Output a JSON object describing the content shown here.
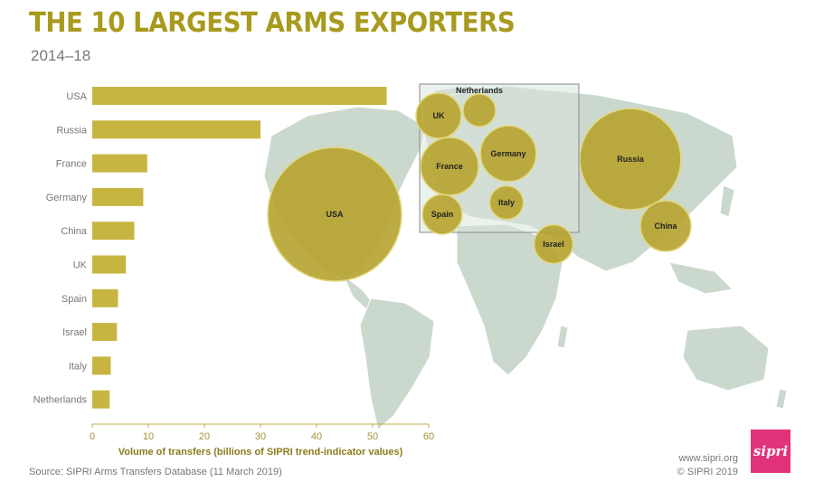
{
  "header": {
    "title": "THE 10 LARGEST ARMS EXPORTERS",
    "subtitle": "2014–18"
  },
  "colors": {
    "bar": "#c8b541",
    "bubble": "#b6a32f",
    "bubble_stroke": "#e2d77c",
    "land": "#cbd8ce",
    "axis": "#c0b14a",
    "label_text": "#8a7c1c",
    "logo": "#e0337a"
  },
  "chart_data": {
    "type": "bar",
    "orientation": "horizontal",
    "categories": [
      "USA",
      "Russia",
      "France",
      "Germany",
      "China",
      "UK",
      "Spain",
      "Israel",
      "Italy",
      "Netherlands"
    ],
    "values": [
      52.5,
      30,
      9.8,
      9.1,
      7.5,
      6,
      4.6,
      4.4,
      3.3,
      3.1
    ],
    "xlabel": "Volume of transfers (billions of SIPRI trend-indicator values)",
    "xlim": [
      0,
      60
    ],
    "xticks": [
      0,
      10,
      20,
      30,
      40,
      50,
      60
    ],
    "grid": false
  },
  "map": {
    "inset_label": "Netherlands",
    "bubbles": [
      {
        "label": "USA",
        "value": 52.5
      },
      {
        "label": "Russia",
        "value": 30
      },
      {
        "label": "China",
        "value": 7.5
      },
      {
        "label": "Israel",
        "value": 4.4
      },
      {
        "label": "UK",
        "value": 6
      },
      {
        "label": "France",
        "value": 9.8
      },
      {
        "label": "Germany",
        "value": 9.1
      },
      {
        "label": "Spain",
        "value": 4.6
      },
      {
        "label": "Italy",
        "value": 3.3
      },
      {
        "label": "Netherlands",
        "value": 3.1
      }
    ]
  },
  "footer": {
    "source": "Source: SIPRI Arms Transfers Database (11 March 2019)",
    "website": "www.sipri.org",
    "copyright": "© SIPRI 2019",
    "logo_text": "sipri"
  }
}
